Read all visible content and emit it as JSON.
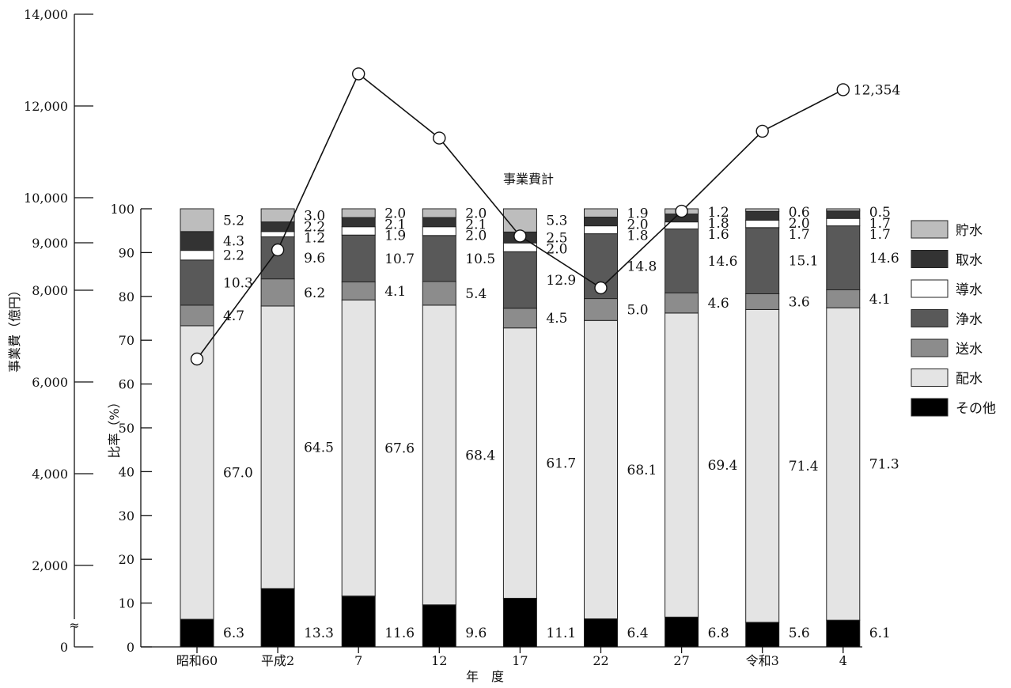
{
  "chart_data": {
    "type": "bar",
    "categories": [
      "昭和60",
      "平成2",
      "7",
      "12",
      "17",
      "22",
      "27",
      "令和3",
      "4"
    ],
    "xlabel": "年　度",
    "ylabel": "比率（%）",
    "y2label": "事業費（億円）",
    "ylim": [
      0,
      100
    ],
    "y_ticks": [
      0,
      10,
      20,
      30,
      40,
      50,
      60,
      70,
      80,
      90,
      100
    ],
    "y2_ticks": [
      "0",
      "2,000",
      "4,000",
      "6,000",
      "8,000",
      "9,000",
      "10,000",
      "12,000",
      "14,000"
    ],
    "y2_break_symbol": "≈",
    "series": [
      {
        "name": "その他",
        "color": "#000000",
        "values": [
          6.3,
          13.3,
          11.6,
          9.6,
          11.1,
          6.4,
          6.8,
          5.6,
          6.1
        ]
      },
      {
        "name": "配水",
        "color": "#e4e4e4",
        "values": [
          67.0,
          64.5,
          67.6,
          68.4,
          61.7,
          68.1,
          69.4,
          71.4,
          71.3
        ]
      },
      {
        "name": "送水",
        "color": "#8c8c8c",
        "values": [
          4.7,
          6.2,
          4.1,
          5.4,
          4.5,
          5.0,
          4.6,
          3.6,
          4.1
        ]
      },
      {
        "name": "浄水",
        "color": "#595959",
        "values": [
          10.3,
          9.6,
          10.7,
          10.5,
          12.9,
          14.8,
          14.6,
          15.1,
          14.6
        ]
      },
      {
        "name": "導水",
        "color": "#ffffff",
        "values": [
          2.2,
          1.2,
          1.9,
          2.0,
          2.0,
          1.8,
          1.6,
          1.7,
          1.7
        ]
      },
      {
        "name": "取水",
        "color": "#333333",
        "values": [
          4.3,
          2.2,
          2.1,
          2.1,
          2.5,
          2.0,
          1.8,
          2.0,
          1.7
        ]
      },
      {
        "name": "貯水",
        "color": "#bdbdbd",
        "values": [
          5.2,
          3.0,
          2.0,
          2.0,
          5.3,
          1.9,
          1.2,
          0.6,
          0.5
        ]
      }
    ],
    "line_series": {
      "name": "事業費計",
      "unit": "億円",
      "values": [
        6500,
        8850,
        12700,
        11300,
        9150,
        8050,
        9700,
        11450,
        12354
      ],
      "last_label": "12,354"
    },
    "legend_position": "right",
    "grid": false
  }
}
